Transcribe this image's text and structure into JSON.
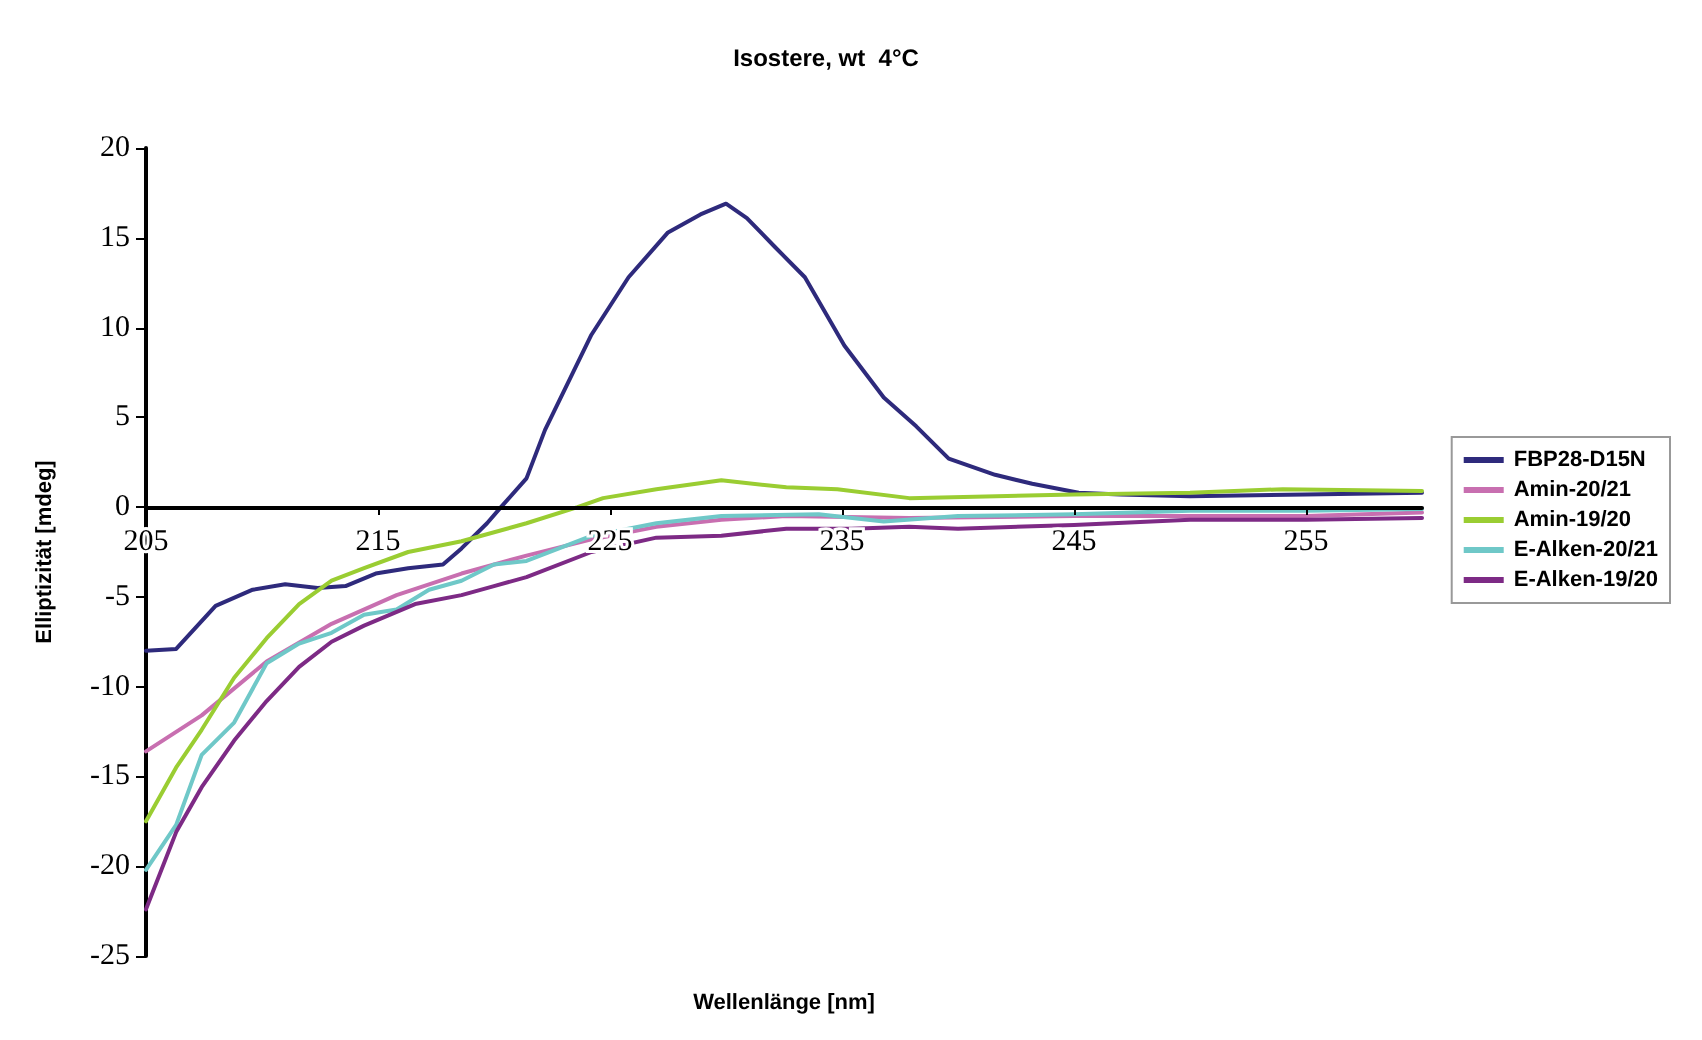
{
  "chart_data": {
    "type": "line",
    "title": "Isostere, wt  4°C",
    "xlabel": "Wellenlänge [nm]",
    "ylabel": "Elliptizität [mdeg]",
    "xlim": [
      205,
      260
    ],
    "xticks": [
      205,
      215,
      225,
      235,
      245,
      255
    ],
    "ylim": [
      -25,
      20
    ],
    "yticks": [
      -25,
      -20,
      -15,
      -10,
      -5,
      0,
      5,
      10,
      15,
      20
    ],
    "grid": false,
    "legend": "right",
    "series": [
      {
        "name": "FBP28-D15N",
        "color": "#2e2a7c",
        "x": [
          205,
          206.3,
          208,
          209.6,
          211,
          212.4,
          213.6,
          214.9,
          216.3,
          217.8,
          218.6,
          219.7,
          220.3,
          221.4,
          222.2,
          224.2,
          225.8,
          227.5,
          228.9,
          230,
          230.9,
          232.1,
          233.4,
          235.1,
          236.8,
          238.2,
          239.6,
          241.6,
          243.2,
          245.2,
          247,
          250,
          255,
          260
        ],
        "values": [
          -8.0,
          -7.9,
          -5.5,
          -4.6,
          -4.3,
          -4.5,
          -4.4,
          -3.7,
          -3.4,
          -3.2,
          -2.3,
          -0.9,
          0,
          1.6,
          4.3,
          9.6,
          12.8,
          15.3,
          16.3,
          16.9,
          16.1,
          14.5,
          12.8,
          9.0,
          6.1,
          4.5,
          2.7,
          1.8,
          1.3,
          0.8,
          0.7,
          0.6,
          0.7,
          0.8
        ]
      },
      {
        "name": "Amin-20/21",
        "color": "#c86fb0",
        "x": [
          205,
          207.4,
          210.2,
          213,
          215.8,
          218.6,
          221.4,
          224.2,
          227,
          229.8,
          232.6,
          237.9,
          245,
          255,
          260
        ],
        "values": [
          -13.6,
          -11.6,
          -8.6,
          -6.5,
          -4.9,
          -3.7,
          -2.7,
          -1.8,
          -1.1,
          -0.7,
          -0.5,
          -0.6,
          -0.5,
          -0.5,
          -0.3
        ]
      },
      {
        "name": "Amin-19/20",
        "color": "#9acd32",
        "x": [
          205,
          206.3,
          207.4,
          208.8,
          210.2,
          211.6,
          213,
          214.4,
          216.3,
          218.6,
          221.4,
          223.6,
          224.7,
          227,
          229.8,
          232.6,
          234.8,
          237.9,
          245,
          250,
          254,
          260
        ],
        "values": [
          -17.5,
          -14.5,
          -12.4,
          -9.5,
          -7.3,
          -5.4,
          -4.1,
          -3.4,
          -2.5,
          -1.9,
          -0.9,
          0,
          0.5,
          1.0,
          1.5,
          1.1,
          1.0,
          0.5,
          0.7,
          0.8,
          1.0,
          0.9
        ]
      },
      {
        "name": "E-Alken-20/21",
        "color": "#6fc8c8",
        "x": [
          205,
          206.3,
          207.4,
          208.8,
          210.2,
          211.6,
          213,
          214.4,
          215.8,
          217.2,
          218.6,
          220,
          221.4,
          222.8,
          224.2,
          227,
          229.8,
          234,
          236.8,
          240,
          245,
          250,
          255,
          260
        ],
        "values": [
          -20.2,
          -17.7,
          -13.8,
          -12,
          -8.7,
          -7.6,
          -7.0,
          -6.0,
          -5.7,
          -4.6,
          -4.1,
          -3.2,
          -3.0,
          -2.3,
          -1.6,
          -0.9,
          -0.5,
          -0.4,
          -0.8,
          -0.5,
          -0.4,
          -0.2,
          -0.2,
          -0.1
        ]
      },
      {
        "name": "E-Alken-19/20",
        "color": "#7d2a85",
        "x": [
          205,
          206.3,
          207.4,
          208.8,
          210.2,
          211.6,
          213,
          214.4,
          216.6,
          218.6,
          220,
          221.4,
          224.2,
          227,
          229.8,
          232.6,
          235.4,
          237.9,
          240,
          245,
          250,
          255,
          260
        ],
        "values": [
          -22.4,
          -18.1,
          -15.6,
          -13.0,
          -10.8,
          -8.9,
          -7.5,
          -6.6,
          -5.4,
          -4.9,
          -4.4,
          -3.9,
          -2.5,
          -1.7,
          -1.6,
          -1.2,
          -1.2,
          -1.1,
          -1.2,
          -1.0,
          -0.7,
          -0.7,
          -0.6
        ]
      }
    ]
  }
}
